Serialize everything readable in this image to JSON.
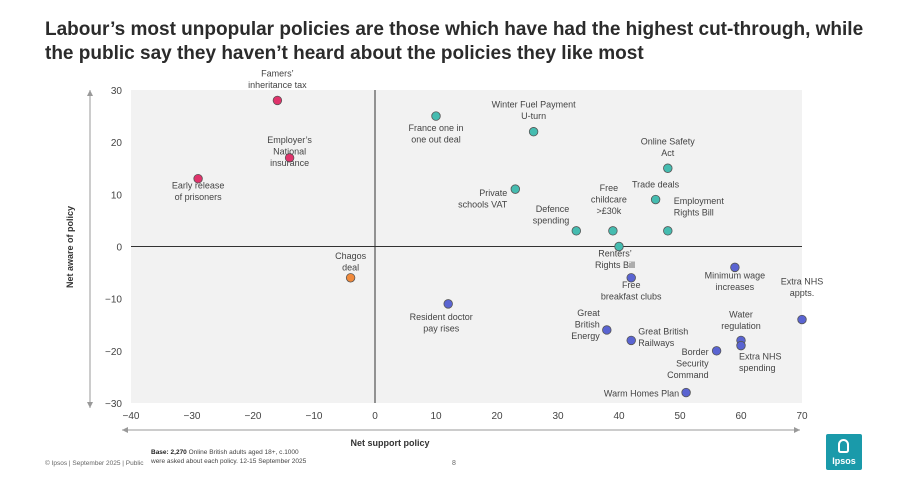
{
  "title": "Labour’s most unpopular policies are those which have had the highest cut-through, while the public say they haven’t heard about the policies they like most",
  "footer": {
    "source": "© Ipsos | September 2025 | Public",
    "base_label": "Base:",
    "base_count": "2,270",
    "base_text_1": "Online British adults aged 18+, c.1000",
    "base_text_2": "were asked about each policy. 12-15 September 2025",
    "page": "8"
  },
  "logo": {
    "text": "Ipsos"
  },
  "colors": {
    "pink": "#e0336b",
    "teal": "#45bcb0",
    "blue": "#5a64d2",
    "orange": "#f08a3c",
    "panel": "#f2f2f2"
  },
  "chart_data": {
    "type": "scatter",
    "title": "",
    "xlabel": "Net support policy",
    "ylabel": "Net aware of policy",
    "xlim": [
      -40,
      70
    ],
    "ylim": [
      -30,
      30
    ],
    "xticks": [
      -40,
      -30,
      -20,
      -10,
      0,
      10,
      20,
      30,
      40,
      50,
      60,
      70
    ],
    "yticks": [
      -30,
      -20,
      -10,
      0,
      10,
      20,
      30
    ],
    "points": [
      {
        "label": "Famers’\ninheritance tax",
        "x": -16,
        "y": 28,
        "group": "pink"
      },
      {
        "label": "Employer’s\nNational\ninsurance",
        "x": -14,
        "y": 17,
        "group": "pink"
      },
      {
        "label": "Early release\nof prisoners",
        "x": -29,
        "y": 13,
        "group": "pink"
      },
      {
        "label": "France one in\none out deal",
        "x": 10,
        "y": 25,
        "group": "teal"
      },
      {
        "label": "Winter Fuel Payment\nU-turn",
        "x": 26,
        "y": 22,
        "group": "teal"
      },
      {
        "label": "Online Safety\nAct",
        "x": 48,
        "y": 15,
        "group": "teal"
      },
      {
        "label": "Private\nschools VAT",
        "x": 23,
        "y": 11,
        "group": "teal"
      },
      {
        "label": "Trade deals",
        "x": 46,
        "y": 9,
        "group": "teal"
      },
      {
        "label": "Free\nchildcare\n>£30k",
        "x": 39,
        "y": 3,
        "group": "teal"
      },
      {
        "label": "Defence\nspending",
        "x": 33,
        "y": 3,
        "group": "teal"
      },
      {
        "label": "Employment\nRights Bill",
        "x": 48,
        "y": 3,
        "group": "teal"
      },
      {
        "label": "Renters’\nRights Bill",
        "x": 40,
        "y": 0,
        "group": "teal"
      },
      {
        "label": "Chagos\ndeal",
        "x": -4,
        "y": -6,
        "group": "orange"
      },
      {
        "label": "Resident doctor\npay rises",
        "x": 12,
        "y": -11,
        "group": "blue"
      },
      {
        "label": "Free\nbreakfast clubs",
        "x": 42,
        "y": -6,
        "group": "blue"
      },
      {
        "label": "Minimum wage\nincreases",
        "x": 59,
        "y": -4,
        "group": "blue"
      },
      {
        "label": "Extra NHS\nappts.",
        "x": 70,
        "y": -14,
        "group": "blue"
      },
      {
        "label": "Great\nBritish\nEnergy",
        "x": 38,
        "y": -16,
        "group": "blue"
      },
      {
        "label": "Great British\nRailways",
        "x": 42,
        "y": -18,
        "group": "blue"
      },
      {
        "label": "Water\nregulation",
        "x": 60,
        "y": -18,
        "group": "blue"
      },
      {
        "label": "Extra NHS\nspending",
        "x": 60,
        "y": -19,
        "group": "blue"
      },
      {
        "label": "Border\nSecurity\nCommand",
        "x": 56,
        "y": -20,
        "group": "blue"
      },
      {
        "label": "Warm Homes Plan",
        "x": 51,
        "y": -28,
        "group": "blue"
      }
    ]
  }
}
